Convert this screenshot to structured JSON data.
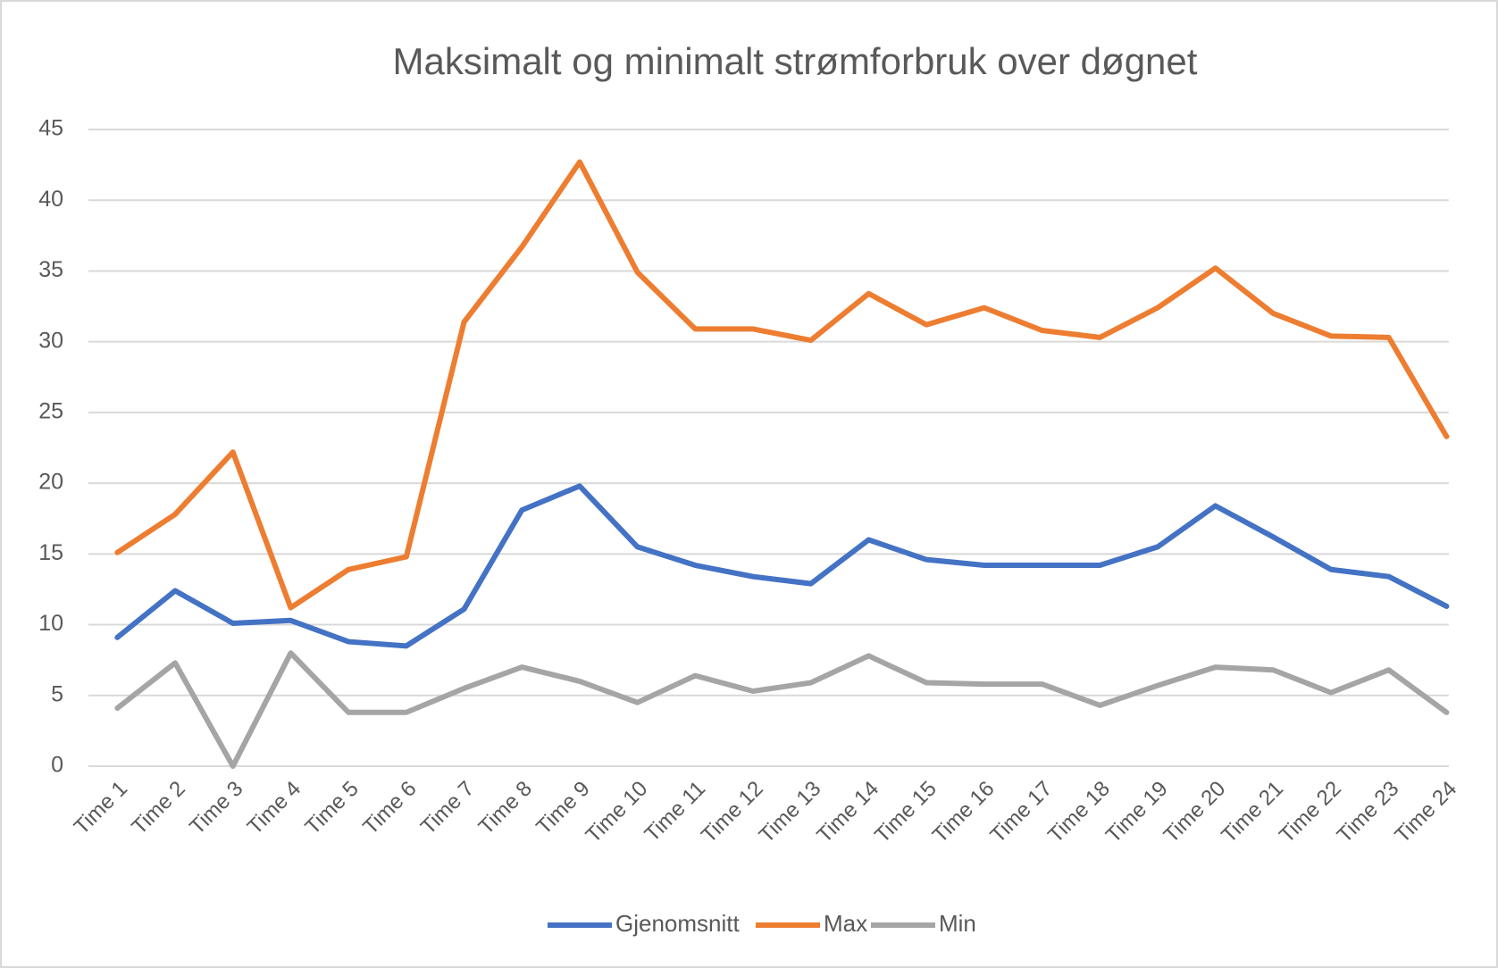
{
  "chart_data": {
    "type": "line",
    "title": "Maksimalt og minimalt strømforbruk over døgnet",
    "categories": [
      "Time 1",
      "Time 2",
      "Time 3",
      "Time 4",
      "Time 5",
      "Time 6",
      "Time 7",
      "Time 8",
      "Time 9",
      "Time 10",
      "Time 11",
      "Time 12",
      "Time 13",
      "Time 14",
      "Time 15",
      "Time 16",
      "Time 17",
      "Time 18",
      "Time 19",
      "Time 20",
      "Time 21",
      "Time 22",
      "Time 23",
      "Time 24"
    ],
    "series": [
      {
        "name": "Gjenomsnitt",
        "color": "#4472c4",
        "values": [
          9.1,
          12.4,
          10.1,
          10.3,
          8.8,
          8.5,
          11.1,
          18.1,
          19.8,
          15.5,
          14.2,
          13.4,
          12.9,
          16.0,
          14.6,
          14.2,
          14.2,
          14.2,
          15.5,
          18.4,
          16.2,
          13.9,
          13.4,
          11.3
        ]
      },
      {
        "name": "Max",
        "color": "#ed7d31",
        "values": [
          15.1,
          17.8,
          22.2,
          11.2,
          13.9,
          14.8,
          31.4,
          36.7,
          42.7,
          34.9,
          30.9,
          30.9,
          30.1,
          33.4,
          31.2,
          32.4,
          30.8,
          30.3,
          32.4,
          35.2,
          32.0,
          30.4,
          30.3,
          23.3
        ]
      },
      {
        "name": "Min",
        "color": "#a5a5a5",
        "values": [
          4.1,
          7.3,
          0,
          8.0,
          3.8,
          3.8,
          5.5,
          7.0,
          6.0,
          4.5,
          6.4,
          5.3,
          5.9,
          7.8,
          5.9,
          5.8,
          5.8,
          4.3,
          5.7,
          7.0,
          6.8,
          5.2,
          6.8,
          3.8
        ]
      }
    ],
    "ylim": [
      0,
      45
    ],
    "yticks": [
      0,
      5,
      10,
      15,
      20,
      25,
      30,
      35,
      40,
      45
    ],
    "grid": true,
    "legend": "bottom"
  }
}
